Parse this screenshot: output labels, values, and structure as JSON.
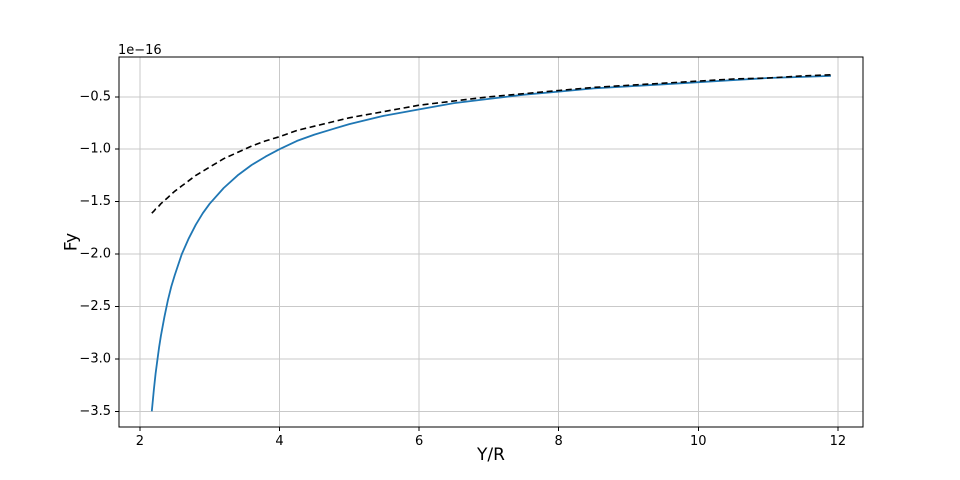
{
  "figure": {
    "background": "#ffffff",
    "axes_background": "#ffffff",
    "spine_color": "#000000",
    "tick_color": "#000000"
  },
  "chart_data": {
    "type": "line",
    "title": "",
    "xlabel": "Y/R",
    "ylabel": "Fy",
    "y_offset_text": "1e−16",
    "y_units_multiplier": 1e-16,
    "xlim": [
      1.7,
      12.36
    ],
    "ylim": [
      -3.65,
      -0.12
    ],
    "grid": {
      "visible": true,
      "color": "#c9c9c9",
      "line_width": 1
    },
    "legend": {
      "visible": false
    },
    "xticks": {
      "values": [
        2,
        4,
        6,
        8,
        10,
        12
      ],
      "labels": [
        "2",
        "4",
        "6",
        "8",
        "10",
        "12"
      ]
    },
    "yticks": {
      "values": [
        -0.5,
        -1.0,
        -1.5,
        -2.0,
        -2.5,
        -3.0,
        -3.5
      ],
      "labels": [
        "−0.5",
        "−1.0",
        "−1.5",
        "−2.0",
        "−2.5",
        "−3.0",
        "−3.5"
      ]
    },
    "x": [
      2.17,
      2.2,
      2.225,
      2.25,
      2.275,
      2.3,
      2.35,
      2.4,
      2.45,
      2.5,
      2.6,
      2.7,
      2.8,
      2.9,
      3.0,
      3.2,
      3.4,
      3.6,
      3.8,
      4.0,
      4.25,
      4.5,
      4.75,
      5.0,
      5.5,
      6.0,
      6.5,
      7.0,
      7.5,
      8.0,
      8.5,
      9.0,
      9.5,
      10.0,
      10.5,
      11.0,
      11.5,
      11.9
    ],
    "series": [
      {
        "name": "solid-blue-curve",
        "line_style": "solid",
        "color": "#1f77b4",
        "line_width": 1.8,
        "y": [
          -3.5,
          -3.29,
          -3.14,
          -3.01,
          -2.89,
          -2.78,
          -2.6,
          -2.44,
          -2.31,
          -2.2,
          -2.0,
          -1.85,
          -1.72,
          -1.61,
          -1.52,
          -1.37,
          -1.25,
          -1.15,
          -1.07,
          -1.0,
          -0.92,
          -0.86,
          -0.81,
          -0.76,
          -0.68,
          -0.62,
          -0.56,
          -0.52,
          -0.48,
          -0.45,
          -0.42,
          -0.4,
          -0.38,
          -0.36,
          -0.34,
          -0.32,
          -0.31,
          -0.3
        ]
      },
      {
        "name": "dashed-black-curve",
        "line_style": "dashed",
        "color": "#000000",
        "line_width": 1.6,
        "y": [
          -1.61,
          -1.59,
          -1.57,
          -1.56,
          -1.54,
          -1.52,
          -1.49,
          -1.46,
          -1.43,
          -1.4,
          -1.35,
          -1.3,
          -1.25,
          -1.21,
          -1.17,
          -1.09,
          -1.03,
          -0.97,
          -0.92,
          -0.88,
          -0.82,
          -0.78,
          -0.74,
          -0.7,
          -0.64,
          -0.58,
          -0.54,
          -0.5,
          -0.47,
          -0.44,
          -0.41,
          -0.39,
          -0.37,
          -0.35,
          -0.33,
          -0.32,
          -0.3,
          -0.29
        ]
      }
    ]
  }
}
